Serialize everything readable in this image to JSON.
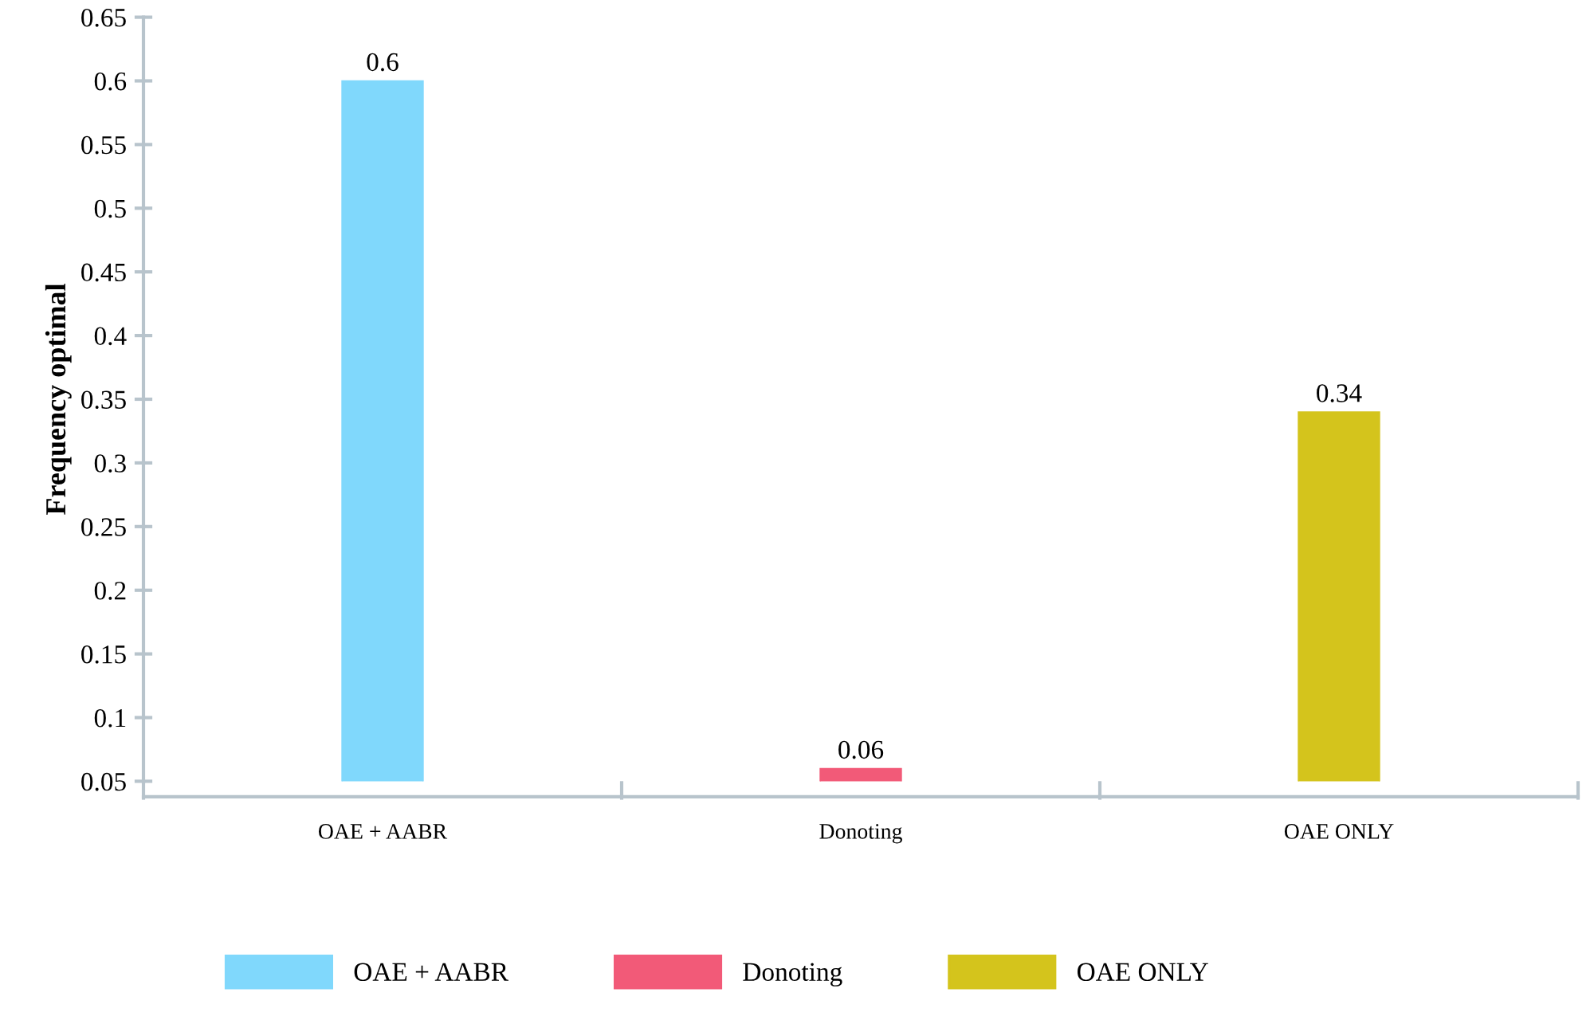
{
  "chart_data": {
    "type": "bar",
    "ylabel": "Frequency optimal",
    "categories": [
      "OAE + AABR",
      "Donoting",
      "OAE ONLY"
    ],
    "series": [
      {
        "name": "OAE + AABR",
        "color": "#80d8fc",
        "values": [
          0.6,
          null,
          null
        ]
      },
      {
        "name": "Donoting",
        "color": "#f25a78",
        "values": [
          null,
          0.06,
          null
        ]
      },
      {
        "name": "OAE ONLY",
        "color": "#d4c41c",
        "values": [
          null,
          null,
          0.34
        ]
      }
    ],
    "ylim": [
      0.05,
      0.65
    ],
    "yticks": [
      0.05,
      0.1,
      0.15,
      0.2,
      0.25,
      0.3,
      0.35,
      0.4,
      0.45,
      0.5,
      0.55,
      0.6,
      0.65
    ],
    "data_labels": true,
    "grid": false,
    "legend": "bottom"
  }
}
